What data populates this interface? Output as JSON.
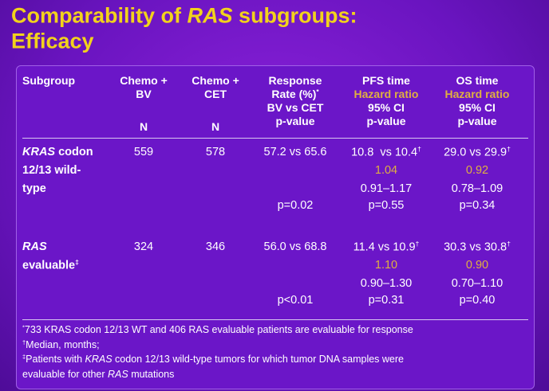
{
  "title": {
    "line1": [
      {
        "text": "Comparability of "
      },
      {
        "text": "RAS",
        "italic": true
      },
      {
        "text": " subgroups:"
      }
    ],
    "line2": "Efficacy"
  },
  "table": {
    "columns": [
      [
        "Subgroup"
      ],
      [
        "Chemo +",
        "BV",
        "N"
      ],
      [
        "Chemo +",
        "CET",
        "N"
      ],
      [
        "Response",
        [
          {
            "text": "Rate (%)"
          },
          {
            "text": "*",
            "sup": true
          }
        ],
        "BV vs CET",
        "p-value"
      ],
      [
        "PFS time",
        [
          {
            "text": "Hazard ratio",
            "color": "#e0b040"
          }
        ],
        "95% CI",
        "p-value"
      ],
      [
        "OS time",
        [
          {
            "text": "Hazard ratio",
            "color": "#e0b040"
          }
        ],
        "95% CI",
        "p-value"
      ]
    ],
    "rows": [
      [
        [
          [
            {
              "text": "KRAS",
              "italic": true
            },
            {
              "text": " codon"
            }
          ],
          "12/13 wild-",
          "type"
        ],
        [
          "559"
        ],
        [
          "578"
        ],
        [
          "57.2 vs 65.6",
          "p=0.02"
        ],
        [
          [
            {
              "text": "10.8  vs 10.4"
            },
            {
              "text": "†",
              "sup": true
            }
          ],
          [
            {
              "text": "1.04",
              "color": "#e0b040"
            }
          ],
          "0.91–1.17",
          "p=0.55"
        ],
        [
          [
            {
              "text": "29.0 vs 29.9"
            },
            {
              "text": "†",
              "sup": true
            }
          ],
          [
            {
              "text": "0.92",
              "color": "#e0b040"
            }
          ],
          "0.78–1.09",
          "p=0.34"
        ]
      ],
      [
        [
          [
            {
              "text": "RAS",
              "italic": true
            }
          ],
          [
            {
              "text": "evaluable"
            },
            {
              "text": "‡",
              "sup": true
            }
          ]
        ],
        [
          "324"
        ],
        [
          "346"
        ],
        [
          "56.0 vs 68.8",
          "p<0.01"
        ],
        [
          [
            {
              "text": "11.4 vs 10.9"
            },
            {
              "text": "†",
              "sup": true
            }
          ],
          [
            {
              "text": "1.10",
              "color": "#e0b040"
            }
          ],
          "0.90–1.30",
          "p=0.31"
        ],
        [
          [
            {
              "text": "30.3 vs 30.8"
            },
            {
              "text": "†",
              "sup": true
            }
          ],
          [
            {
              "text": "0.90",
              "color": "#e0b040"
            }
          ],
          "0.70–1.10",
          "p=0.40"
        ]
      ]
    ]
  },
  "footnotes": [
    [
      {
        "text": "*",
        "sup": true
      },
      {
        "text": "733 KRAS codon 12/13 WT and 406 RAS evaluable patients are evaluable for response"
      }
    ],
    [
      {
        "text": "†",
        "sup": true
      },
      {
        "text": "Median, months;"
      }
    ],
    [
      {
        "text": "‡",
        "sup": true
      },
      {
        "text": "Patients with "
      },
      {
        "text": "KRAS",
        "italic": true
      },
      {
        "text": " codon 12/13 wild-type tumors for which tumor DNA samples were"
      }
    ],
    [
      {
        "text": "evaluable for other "
      },
      {
        "text": "RAS",
        "italic": true
      },
      {
        "text": " mutations"
      }
    ]
  ]
}
